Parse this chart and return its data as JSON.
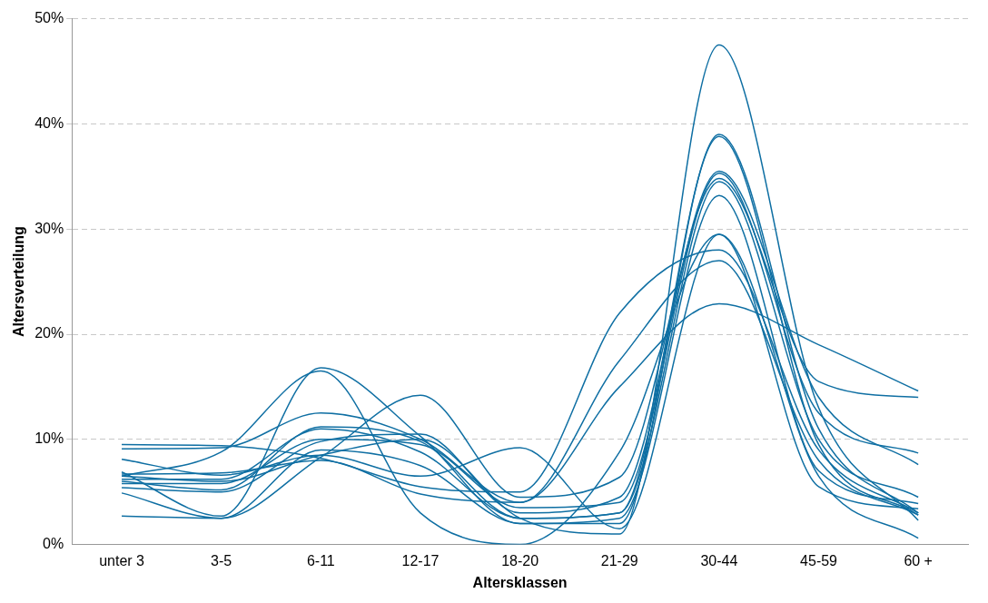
{
  "chart_data": {
    "type": "line",
    "xlabel": "Altersklassen",
    "ylabel": "Altersverteilung",
    "categories": [
      "unter 3",
      "3-5",
      "6-11",
      "12-17",
      "18-20",
      "21-29",
      "30-44",
      "45-59",
      "60 +"
    ],
    "ylim": [
      0,
      50
    ],
    "yticks": [
      {
        "value": 0,
        "label": "0%"
      },
      {
        "value": 10,
        "label": "10%"
      },
      {
        "value": 20,
        "label": "20%"
      },
      {
        "value": 30,
        "label": "30%"
      },
      {
        "value": 40,
        "label": "40%"
      },
      {
        "value": 50,
        "label": "50%"
      }
    ],
    "grid": "y",
    "legend": false,
    "marker": "none",
    "line_style": "solid",
    "series": [
      {
        "color": "#0f6fa3",
        "values": [
          6.5,
          6.0,
          8.5,
          10.0,
          2.5,
          1.0,
          47.5,
          13.0,
          2.3
        ]
      },
      {
        "color": "#0f6fa3",
        "values": [
          6.9,
          2.7,
          16.8,
          10.3,
          2.0,
          2.0,
          39.0,
          11.0,
          3.0
        ]
      },
      {
        "color": "#0f6fa3",
        "values": [
          6.0,
          5.2,
          11.2,
          9.8,
          2.5,
          3.0,
          38.8,
          9.5,
          2.8
        ]
      },
      {
        "color": "#0f6fa3",
        "values": [
          5.4,
          5.0,
          9.8,
          10.5,
          3.0,
          4.5,
          35.5,
          14.0,
          7.6
        ]
      },
      {
        "color": "#0f6fa3",
        "values": [
          5.8,
          5.8,
          10.0,
          9.5,
          3.5,
          4.0,
          35.3,
          12.5,
          8.7
        ]
      },
      {
        "color": "#0f6fa3",
        "values": [
          4.9,
          2.5,
          8.3,
          14.2,
          4.5,
          6.4,
          34.8,
          15.5,
          14.0
        ]
      },
      {
        "color": "#0f6fa3",
        "values": [
          6.2,
          6.2,
          11.0,
          8.8,
          2.5,
          3.0,
          34.5,
          10.0,
          4.5
        ]
      },
      {
        "color": "#0f6fa3",
        "values": [
          2.7,
          2.5,
          9.0,
          7.5,
          2.0,
          2.5,
          33.2,
          7.0,
          3.9
        ]
      },
      {
        "color": "#0f6fa3",
        "values": [
          8.1,
          6.6,
          8.5,
          6.5,
          9.2,
          1.5,
          29.5,
          5.5,
          3.4
        ]
      },
      {
        "color": "#0f6fa3",
        "values": [
          9.5,
          9.4,
          8.2,
          5.5,
          5.0,
          22.0,
          28.0,
          9.0,
          3.0
        ]
      },
      {
        "color": "#0f6fa3",
        "values": [
          9.1,
          9.2,
          12.5,
          10.0,
          4.0,
          17.5,
          27.0,
          8.0,
          2.8
        ]
      },
      {
        "color": "#0f6fa3",
        "values": [
          6.7,
          6.8,
          8.0,
          4.8,
          4.0,
          15.0,
          22.9,
          19.0,
          14.6
        ]
      },
      {
        "color": "#0f6fa3",
        "values": [
          6.5,
          8.8,
          16.5,
          3.0,
          0.0,
          8.8,
          29.5,
          6.5,
          0.6
        ]
      }
    ]
  }
}
